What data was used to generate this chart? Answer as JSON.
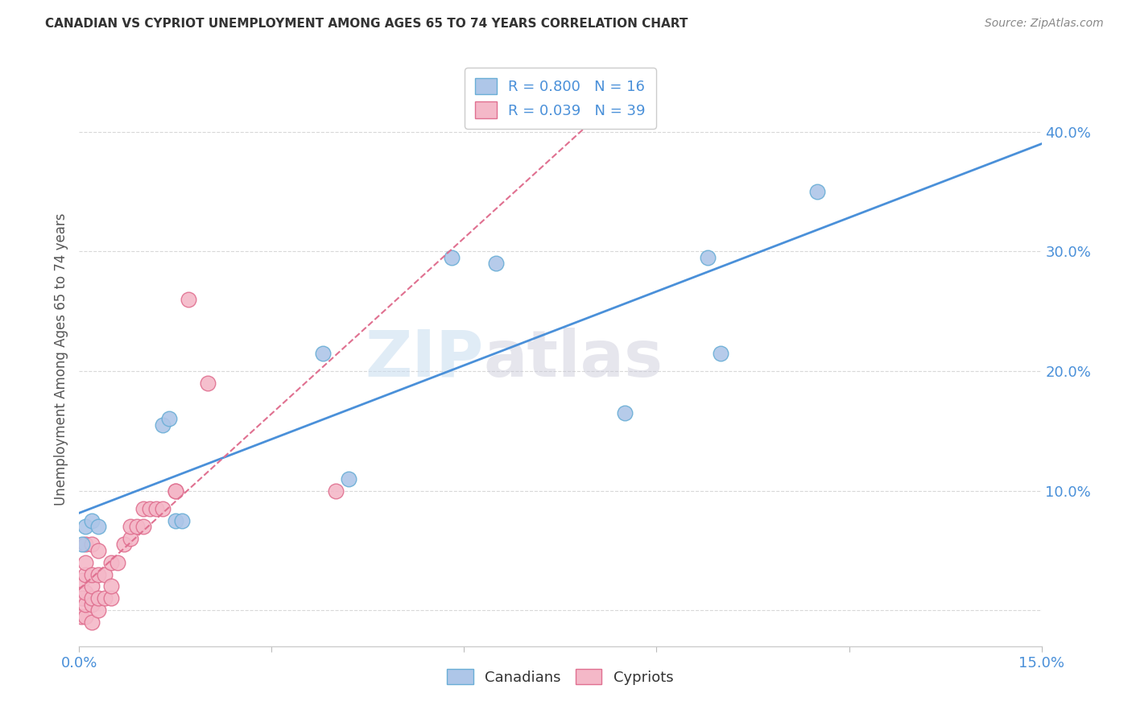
{
  "title": "CANADIAN VS CYPRIOT UNEMPLOYMENT AMONG AGES 65 TO 74 YEARS CORRELATION CHART",
  "source": "Source: ZipAtlas.com",
  "ylabel": "Unemployment Among Ages 65 to 74 years",
  "xlim": [
    0.0,
    0.15
  ],
  "ylim": [
    -0.03,
    0.45
  ],
  "xticks": [
    0.0,
    0.03,
    0.06,
    0.09,
    0.12,
    0.15
  ],
  "xticklabels": [
    "0.0%",
    "",
    "",
    "",
    "",
    "15.0%"
  ],
  "yticks_right": [
    0.0,
    0.1,
    0.2,
    0.3,
    0.4
  ],
  "yticklabels_right": [
    "",
    "10.0%",
    "20.0%",
    "30.0%",
    "40.0%"
  ],
  "canadian_x": [
    0.0005,
    0.001,
    0.002,
    0.003,
    0.013,
    0.014,
    0.015,
    0.016,
    0.038,
    0.042,
    0.058,
    0.065,
    0.085,
    0.098,
    0.1,
    0.115
  ],
  "canadian_y": [
    0.055,
    0.07,
    0.075,
    0.07,
    0.155,
    0.16,
    0.075,
    0.075,
    0.215,
    0.11,
    0.295,
    0.29,
    0.165,
    0.295,
    0.215,
    0.35
  ],
  "cypriot_x": [
    0.0003,
    0.0005,
    0.0005,
    0.001,
    0.001,
    0.001,
    0.001,
    0.001,
    0.001,
    0.002,
    0.002,
    0.002,
    0.002,
    0.002,
    0.002,
    0.003,
    0.003,
    0.003,
    0.003,
    0.004,
    0.004,
    0.005,
    0.005,
    0.005,
    0.006,
    0.007,
    0.008,
    0.008,
    0.009,
    0.01,
    0.01,
    0.011,
    0.012,
    0.013,
    0.015,
    0.015,
    0.017,
    0.02,
    0.04
  ],
  "cypriot_y": [
    -0.005,
    0.01,
    0.025,
    -0.005,
    0.005,
    0.015,
    0.03,
    0.04,
    0.055,
    -0.01,
    0.005,
    0.01,
    0.02,
    0.03,
    0.055,
    0.0,
    0.01,
    0.03,
    0.05,
    0.01,
    0.03,
    0.01,
    0.02,
    0.04,
    0.04,
    0.055,
    0.06,
    0.07,
    0.07,
    0.07,
    0.085,
    0.085,
    0.085,
    0.085,
    0.1,
    0.1,
    0.26,
    0.19,
    0.1
  ],
  "canadian_color": "#aec6e8",
  "canadian_edge_color": "#6aaed6",
  "canadian_line_color": "#4a90d9",
  "cypriot_color": "#f4b8c8",
  "cypriot_edge_color": "#e07090",
  "cypriot_line_color": "#e07090",
  "R_canadian": "0.800",
  "N_canadian": "16",
  "R_cypriot": "0.039",
  "N_cypriot": "39",
  "watermark_zip": "ZIP",
  "watermark_atlas": "atlas",
  "background_color": "#ffffff",
  "grid_color": "#d8d8d8",
  "title_color": "#333333",
  "source_color": "#888888",
  "axis_label_color": "#555555",
  "tick_color": "#4a90d9",
  "legend_stat_color": "#4a90d9",
  "legend_r_label_color": "#333333"
}
